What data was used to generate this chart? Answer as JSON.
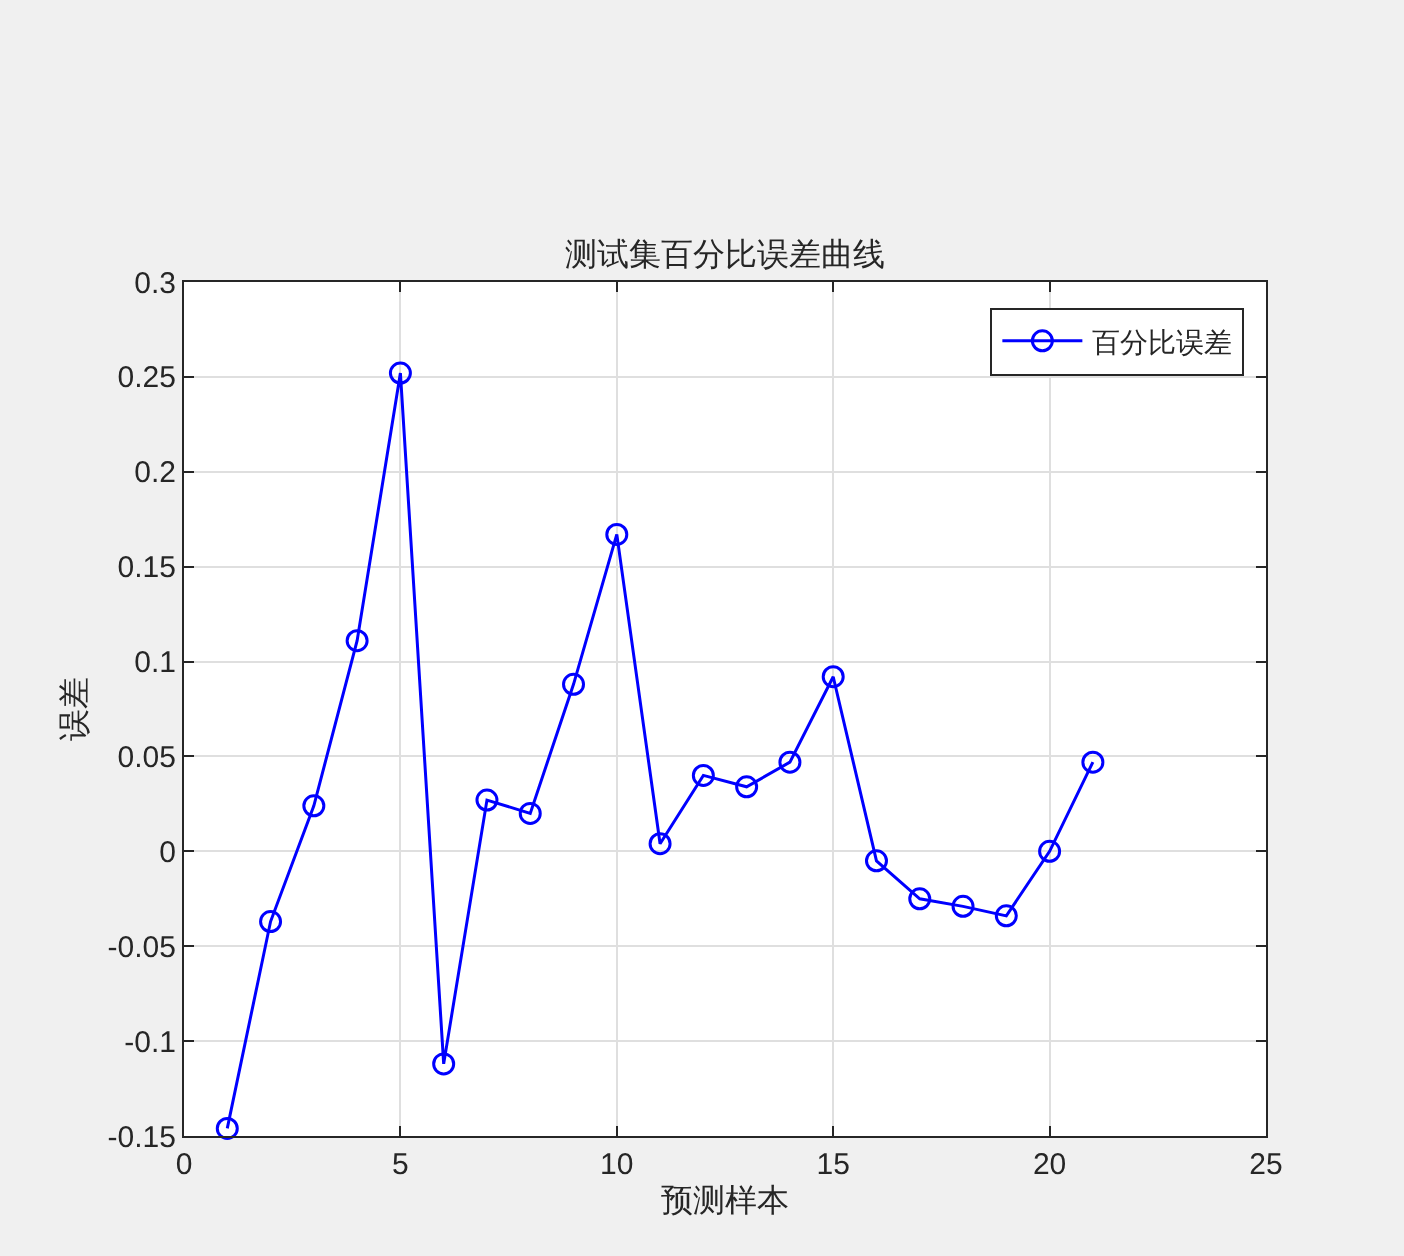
{
  "chart_data": {
    "type": "line",
    "title": "测试集百分比误差曲线",
    "xlabel": "预测样本",
    "ylabel": "误差",
    "x": [
      1,
      2,
      3,
      4,
      5,
      6,
      7,
      8,
      9,
      10,
      11,
      12,
      13,
      14,
      15,
      16,
      17,
      18,
      19,
      20,
      21
    ],
    "series": [
      {
        "name": "百分比误差",
        "color": "#0000ff",
        "values": [
          -0.146,
          -0.037,
          0.024,
          0.111,
          0.252,
          -0.112,
          0.027,
          0.02,
          0.088,
          0.167,
          0.004,
          0.04,
          0.034,
          0.047,
          0.092,
          -0.005,
          -0.025,
          -0.029,
          -0.034,
          0.0,
          0.047
        ]
      }
    ],
    "xlim": [
      0,
      25
    ],
    "xticks": [
      0,
      5,
      10,
      15,
      20,
      25
    ],
    "ylim": [
      -0.15,
      0.3
    ],
    "yticks": [
      -0.15,
      -0.1,
      -0.05,
      0,
      0.05,
      0.1,
      0.15,
      0.2,
      0.25,
      0.3
    ],
    "grid": true,
    "legend": "top right",
    "marker": "circle",
    "line_style": "solid"
  }
}
